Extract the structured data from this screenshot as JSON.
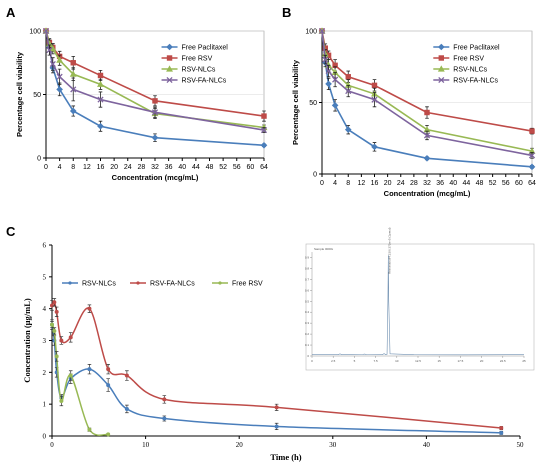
{
  "chart_data": [
    {
      "panel": "A",
      "type": "line",
      "xlabel": "Concentration (mcg/mL)",
      "ylabel": "Percentage cell viability",
      "x_ticks": [
        0,
        4,
        8,
        12,
        16,
        20,
        24,
        28,
        32,
        36,
        40,
        44,
        48,
        52,
        56,
        60,
        64
      ],
      "y_ticks": [
        0,
        50,
        100
      ],
      "xlim": [
        0,
        64
      ],
      "ylim": [
        0,
        100
      ],
      "x": [
        0,
        1,
        2,
        4,
        8,
        16,
        32,
        64
      ],
      "series": [
        {
          "name": "Free Paclitaxel",
          "color": "#4a7ebb",
          "marker": "diamond",
          "values": [
            100,
            87,
            71,
            54,
            37,
            25,
            16,
            10
          ],
          "errors": [
            0,
            3,
            4,
            5,
            4,
            4,
            3,
            1
          ]
        },
        {
          "name": "Free RSV",
          "color": "#be4b48",
          "marker": "square",
          "values": [
            100,
            91,
            87,
            80,
            75,
            65,
            45,
            33
          ],
          "errors": [
            0,
            3,
            3,
            4,
            5,
            4,
            4,
            4
          ]
        },
        {
          "name": "RSV-NLCs",
          "color": "#98b954",
          "marker": "triangle",
          "values": [
            100,
            90,
            86,
            77,
            66,
            58,
            35,
            24
          ],
          "errors": [
            0,
            3,
            4,
            4,
            5,
            4,
            4,
            2
          ]
        },
        {
          "name": "RSV-FA-NLCs",
          "color": "#7e649e",
          "marker": "x",
          "values": [
            100,
            85,
            74,
            64,
            54,
            46,
            36,
            22
          ],
          "errors": [
            0,
            4,
            5,
            6,
            9,
            6,
            4,
            2
          ]
        }
      ]
    },
    {
      "panel": "B",
      "type": "line",
      "xlabel": "Concentration (mcg/mL)",
      "ylabel": "Percentage cell viability",
      "x_ticks": [
        0,
        4,
        8,
        12,
        16,
        20,
        24,
        28,
        32,
        36,
        40,
        44,
        48,
        52,
        56,
        60,
        64
      ],
      "y_ticks": [
        0,
        50,
        100
      ],
      "xlim": [
        0,
        64
      ],
      "ylim": [
        0,
        100
      ],
      "x": [
        0,
        1,
        2,
        4,
        8,
        16,
        32,
        64
      ],
      "series": [
        {
          "name": "Free Paclitaxel",
          "color": "#4a7ebb",
          "marker": "diamond",
          "values": [
            100,
            78,
            63,
            48,
            31,
            19,
            11,
            5
          ],
          "errors": [
            0,
            3,
            4,
            4,
            3,
            3,
            1,
            1
          ]
        },
        {
          "name": "Free RSV",
          "color": "#be4b48",
          "marker": "square",
          "values": [
            100,
            88,
            83,
            76,
            68,
            62,
            43,
            30
          ],
          "errors": [
            0,
            3,
            3,
            4,
            4,
            4,
            4,
            2
          ]
        },
        {
          "name": "RSV-NLCs",
          "color": "#98b954",
          "marker": "triangle",
          "values": [
            100,
            84,
            76,
            71,
            62,
            56,
            31,
            16
          ],
          "errors": [
            0,
            3,
            4,
            4,
            4,
            4,
            3,
            2
          ]
        },
        {
          "name": "RSV-FA-NLCs",
          "color": "#7e649e",
          "marker": "x",
          "values": [
            100,
            80,
            72,
            66,
            58,
            52,
            27,
            13
          ],
          "errors": [
            0,
            3,
            4,
            5,
            4,
            5,
            3,
            2
          ]
        }
      ]
    },
    {
      "panel": "C",
      "type": "line",
      "xlabel": "Time (h)",
      "ylabel": "Concentration (μg/mL)",
      "x_ticks": [
        0,
        10,
        20,
        30,
        40,
        50
      ],
      "y_ticks": [
        0,
        1,
        2,
        3,
        4,
        5,
        6
      ],
      "xlim": [
        0,
        50
      ],
      "ylim": [
        0,
        6
      ],
      "series": [
        {
          "name": "RSV-NLCs",
          "color": "#4a7ebb",
          "x": [
            0,
            0.25,
            0.5,
            1,
            2,
            4,
            6,
            8,
            12,
            24,
            48
          ],
          "values": [
            3.5,
            3.0,
            2.0,
            1.2,
            1.8,
            2.1,
            1.6,
            0.85,
            0.55,
            0.3,
            0.1
          ],
          "errors": [
            0.15,
            0.15,
            0.15,
            0.1,
            0.15,
            0.15,
            0.2,
            0.12,
            0.08,
            0.1,
            0.05
          ]
        },
        {
          "name": "RSV-FA-NLCs",
          "color": "#be4b48",
          "x": [
            0,
            0.25,
            0.5,
            1,
            2,
            4,
            6,
            8,
            12,
            24,
            48
          ],
          "values": [
            4.1,
            4.2,
            3.9,
            3.0,
            3.1,
            4.0,
            2.1,
            1.9,
            1.15,
            0.9,
            0.25
          ],
          "errors": [
            0.15,
            0.12,
            0.15,
            0.12,
            0.15,
            0.12,
            0.15,
            0.15,
            0.12,
            0.1,
            0.05
          ]
        },
        {
          "name": "Free RSV",
          "color": "#98b954",
          "x": [
            0,
            0.25,
            0.5,
            1,
            2,
            4,
            6
          ],
          "values": [
            3.5,
            3.3,
            2.5,
            1.1,
            1.9,
            0.2,
            0.05
          ],
          "errors": [
            0.1,
            0.1,
            0.15,
            0.15,
            0.15,
            0.05,
            0.02
          ]
        }
      ],
      "inset": {
        "title": "Sample 0000x",
        "peak_label": "Resveratrol/4.23/6.372e+5 (1pmol)",
        "x_ticks": [
          0,
          2.5,
          5,
          7.5,
          10,
          12.5,
          15,
          17.5,
          20,
          22.5,
          25
        ],
        "y_ticks": [
          0,
          0.1,
          0.2,
          0.3,
          0.4,
          0.5,
          0.6,
          0.7,
          0.8,
          0.9
        ],
        "xlim": [
          0,
          25
        ],
        "ylim": [
          0,
          0.95
        ]
      }
    }
  ]
}
